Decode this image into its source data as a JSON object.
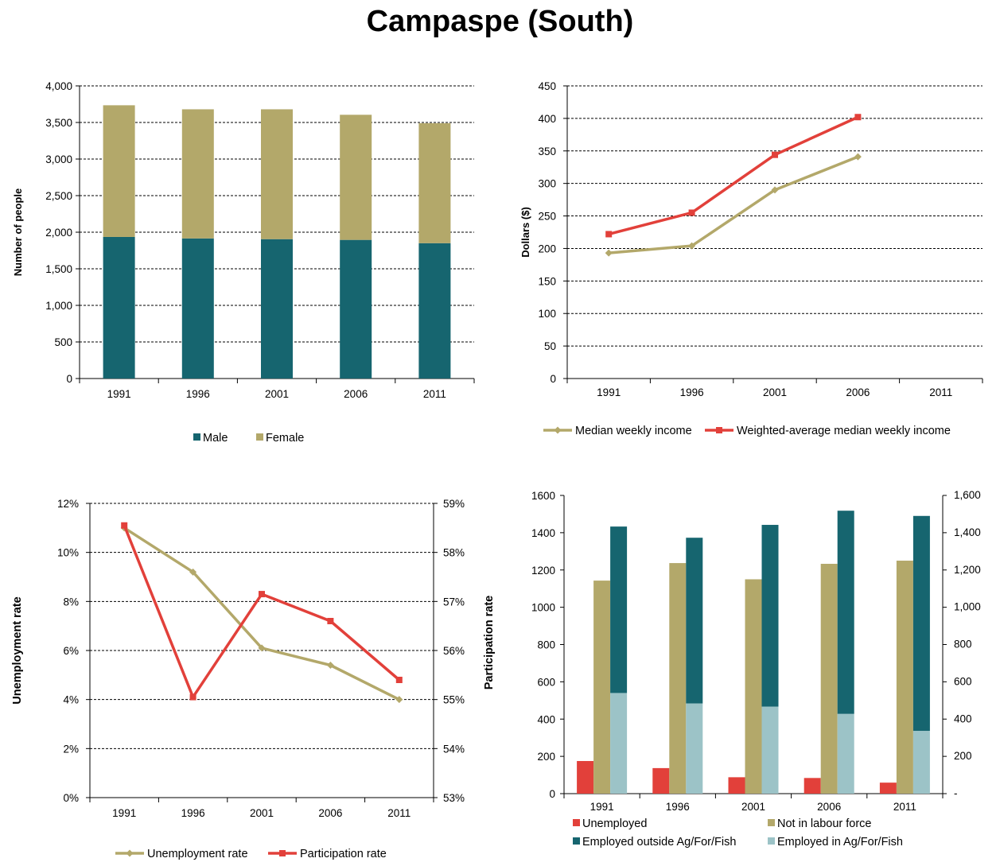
{
  "page": {
    "title": "Campaspe (South)"
  },
  "colors": {
    "teal": "#16656F",
    "khaki": "#B3A86A",
    "red": "#E2403A",
    "lightblue": "#9CC3C7"
  },
  "chart_data": [
    {
      "id": "population",
      "type": "bar",
      "stacked": true,
      "categories": [
        "1991",
        "1996",
        "2001",
        "2006",
        "2011"
      ],
      "series": [
        {
          "name": "Male",
          "color": "#16656F",
          "values": [
            1935,
            1915,
            1905,
            1895,
            1850
          ]
        },
        {
          "name": "Female",
          "color": "#B3A86A",
          "values": [
            1800,
            1765,
            1775,
            1710,
            1640
          ]
        }
      ],
      "ylabel": "Number of people",
      "ylim": [
        0,
        4000
      ],
      "yticks": [
        "0",
        "500",
        "1,000",
        "1,500",
        "2,000",
        "2,500",
        "3,000",
        "3,500",
        "4,000"
      ],
      "grid": true,
      "legend_position": "bottom"
    },
    {
      "id": "income",
      "type": "line",
      "categories": [
        "1991",
        "1996",
        "2001",
        "2006",
        "2011"
      ],
      "series": [
        {
          "name": "Median weekly income",
          "color": "#B3A86A",
          "marker": "diamond",
          "values": [
            193,
            204,
            290,
            341,
            null
          ]
        },
        {
          "name": "Weighted-average median weekly income",
          "color": "#E2403A",
          "marker": "square",
          "values": [
            222,
            255,
            344,
            402,
            null
          ]
        }
      ],
      "ylabel": "Dollars ($)",
      "ylim": [
        0,
        450
      ],
      "yticks": [
        "0",
        "50",
        "100",
        "150",
        "200",
        "250",
        "300",
        "350",
        "400",
        "450"
      ],
      "grid": true,
      "legend_position": "bottom"
    },
    {
      "id": "rates",
      "type": "line",
      "categories": [
        "1991",
        "1996",
        "2001",
        "2006",
        "2011"
      ],
      "series": [
        {
          "name": "Unemployment rate",
          "color": "#B3A86A",
          "marker": "diamond",
          "axis": "left",
          "values": [
            11.0,
            9.2,
            6.1,
            5.4,
            4.0
          ]
        },
        {
          "name": "Participation rate",
          "color": "#E2403A",
          "marker": "square",
          "axis": "right",
          "values": [
            58.55,
            55.05,
            57.15,
            56.6,
            55.4
          ]
        }
      ],
      "ylabel": "Unemployment rate",
      "ylim": [
        0,
        12
      ],
      "yticks": [
        "0%",
        "2%",
        "4%",
        "6%",
        "8%",
        "10%",
        "12%"
      ],
      "y2label": "Participation rate",
      "y2lim": [
        53,
        59
      ],
      "y2ticks": [
        "53%",
        "54%",
        "55%",
        "56%",
        "57%",
        "58%",
        "59%"
      ],
      "grid": true,
      "legend_position": "bottom"
    },
    {
      "id": "labour",
      "type": "bar",
      "categories": [
        "1991",
        "1996",
        "2001",
        "2006",
        "2011"
      ],
      "series": [
        {
          "name": "Unemployed",
          "color": "#E2403A",
          "values": [
            175,
            137,
            88,
            84,
            59
          ]
        },
        {
          "name": "Not in labour force",
          "color": "#B3A86A",
          "values": [
            1143,
            1237,
            1150,
            1233,
            1250
          ]
        },
        {
          "name": "Employed in Ag/For/Fish",
          "color": "#9CC3C7",
          "stack": "employed",
          "values": [
            540,
            484,
            467,
            428,
            337
          ]
        },
        {
          "name": "Employed outside Ag/For/Fish",
          "color": "#16656F",
          "stack": "employed",
          "values": [
            893,
            889,
            975,
            1090,
            1153
          ]
        }
      ],
      "legend_order": [
        "Unemployed",
        "Not in labour force",
        "Employed outside Ag/For/Fish",
        "Employed in Ag/For/Fish"
      ],
      "ylim": [
        0,
        1600
      ],
      "yticks": [
        "0",
        "200",
        "400",
        "600",
        "800",
        "1000",
        "1200",
        "1400",
        "1600"
      ],
      "y2ticks": [
        "-",
        "200",
        "400",
        "600",
        "800",
        "1,000",
        "1,200",
        "1,400",
        "1,600"
      ],
      "grid": false,
      "legend_position": "bottom"
    }
  ]
}
